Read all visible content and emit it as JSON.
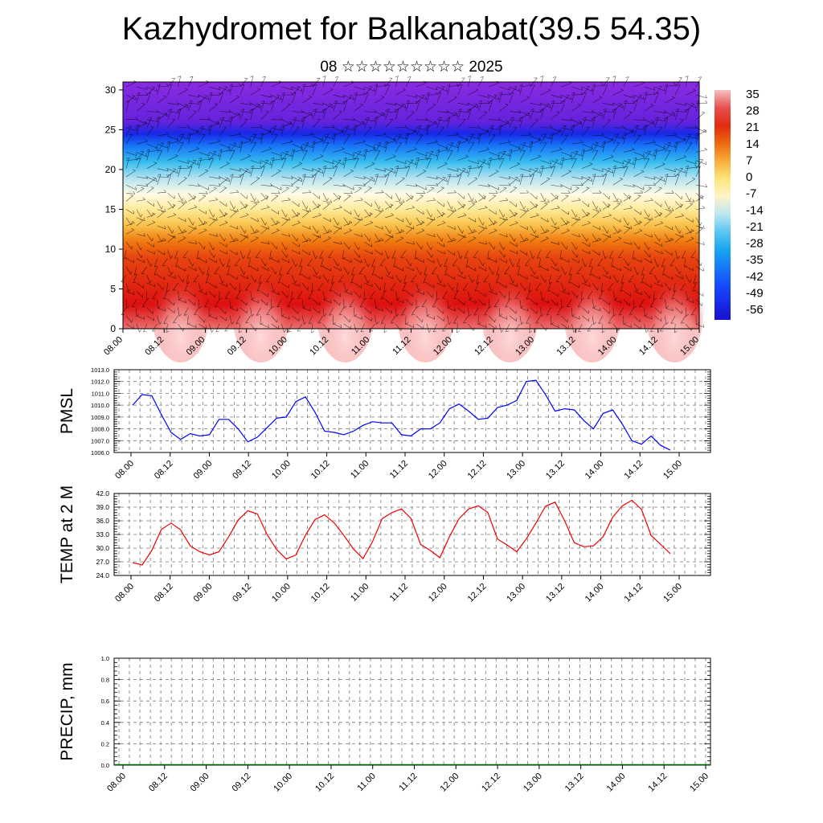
{
  "title": "Kazhydromet for Balkanabat(39.5 54.35)",
  "subtitle": "08 ☆☆☆☆☆☆☆☆☆ 2025",
  "time_labels": [
    "08.00",
    "08.12",
    "09.00",
    "09.12",
    "10.00",
    "10.12",
    "11.00",
    "11.12",
    "12.00",
    "12.12",
    "13.00",
    "13.12",
    "14.00",
    "14.12",
    "15.00"
  ],
  "chart_data": [
    {
      "type": "heatmap",
      "name": "upper-air temperature and wind cross-section",
      "x": [
        "08.00",
        "08.12",
        "09.00",
        "09.12",
        "10.00",
        "10.12",
        "11.00",
        "11.12",
        "12.00",
        "12.12",
        "13.00",
        "13.12",
        "14.00",
        "14.12",
        "15.00"
      ],
      "y_ticks": [
        0,
        5,
        10,
        15,
        20,
        25,
        30
      ],
      "ylim": [
        0,
        31
      ],
      "colorbar_labels": [
        35,
        28,
        21,
        14,
        7,
        0,
        -7,
        -14,
        -21,
        -28,
        -35,
        -42,
        -49,
        -56
      ],
      "colors": {
        "warm_max": "#f7c0c0",
        "warm": "#dd1010",
        "orange": "#f07a10",
        "yellow": "#fde064",
        "pale": "#fffbe8",
        "light_blue": "#9fdcf3",
        "cyan": "#1ab3ee",
        "blue": "#1440ff",
        "dark_blue": "#1a10cc",
        "violet": "#8a2be2"
      },
      "vertical_profile": [
        {
          "level": 0,
          "temp": 30
        },
        {
          "level": 3,
          "temp": 24
        },
        {
          "level": 6,
          "temp": 21
        },
        {
          "level": 9,
          "temp": 18
        },
        {
          "level": 11,
          "temp": 12
        },
        {
          "level": 13,
          "temp": 5
        },
        {
          "level": 15,
          "temp": -3
        },
        {
          "level": 17,
          "temp": -10
        },
        {
          "level": 19,
          "temp": -15
        },
        {
          "level": 21,
          "temp": -24
        },
        {
          "level": 23,
          "temp": -36
        },
        {
          "level": 24.5,
          "temp": -50
        },
        {
          "level": 26,
          "temp": -60
        },
        {
          "level": 31,
          "temp": -64
        }
      ]
    },
    {
      "type": "line",
      "ylabel": "PMSL",
      "ylim": [
        1006.0,
        1013.0
      ],
      "y_ticks": [
        "1006.0",
        "1007.0",
        "1008.0",
        "1009.0",
        "1010.0",
        "1011.0",
        "1012.0",
        "1013.0"
      ],
      "color": "#0000ff",
      "x_step_hours": 3,
      "values": [
        1010.0,
        1010.9,
        1010.8,
        1009.2,
        1007.7,
        1007.1,
        1007.6,
        1007.4,
        1007.5,
        1008.8,
        1008.8,
        1008.0,
        1006.9,
        1007.3,
        1008.1,
        1008.9,
        1009.0,
        1010.3,
        1010.7,
        1009.4,
        1007.8,
        1007.7,
        1007.5,
        1007.8,
        1008.3,
        1008.6,
        1008.5,
        1008.5,
        1007.5,
        1007.4,
        1008.0,
        1008.0,
        1008.5,
        1009.7,
        1010.1,
        1009.5,
        1008.8,
        1008.9,
        1009.8,
        1010.0,
        1010.4,
        1012.0,
        1012.1,
        1010.9,
        1009.5,
        1009.7,
        1009.6,
        1008.7,
        1008.0,
        1009.3,
        1009.6,
        1008.4,
        1007.0,
        1006.7,
        1007.4,
        1006.6,
        1006.2
      ]
    },
    {
      "type": "line",
      "ylabel": "TEMP at 2 M",
      "ylim": [
        24.0,
        42.0
      ],
      "y_ticks": [
        "24.0",
        "27.0",
        "30.0",
        "33.0",
        "36.0",
        "39.0",
        "42.0"
      ],
      "color": "#ee0000",
      "x_step_hours": 3,
      "values": [
        26.8,
        26.3,
        29.5,
        34.1,
        35.5,
        34.0,
        30.5,
        29.2,
        28.5,
        29.2,
        32.5,
        36.2,
        38.2,
        37.5,
        33.0,
        29.7,
        27.6,
        28.5,
        32.8,
        36.3,
        37.3,
        35.5,
        32.8,
        29.8,
        27.7,
        31.5,
        36.5,
        37.8,
        38.6,
        36.5,
        30.8,
        29.5,
        27.9,
        32.5,
        36.5,
        38.6,
        39.3,
        37.8,
        32.0,
        30.7,
        29.2,
        32.0,
        35.5,
        39.2,
        40.1,
        36.0,
        31.2,
        30.3,
        30.5,
        32.5,
        36.8,
        39.3,
        40.5,
        38.5,
        32.8,
        30.8,
        28.8
      ]
    },
    {
      "type": "bar",
      "ylabel": "PRECIP, mm",
      "ylim": [
        0.0,
        1.0
      ],
      "y_ticks": [
        "0.0",
        "0.2",
        "0.4",
        "0.6",
        "0.8",
        "1.0"
      ],
      "color": "#006400",
      "values": [
        0,
        0,
        0,
        0,
        0,
        0,
        0,
        0,
        0,
        0,
        0,
        0,
        0,
        0,
        0,
        0,
        0,
        0,
        0,
        0,
        0,
        0,
        0,
        0,
        0,
        0,
        0,
        0,
        0,
        0,
        0,
        0,
        0,
        0,
        0,
        0,
        0,
        0,
        0,
        0,
        0,
        0,
        0,
        0,
        0,
        0,
        0,
        0,
        0,
        0,
        0,
        0,
        0,
        0,
        0,
        0,
        0
      ]
    }
  ]
}
